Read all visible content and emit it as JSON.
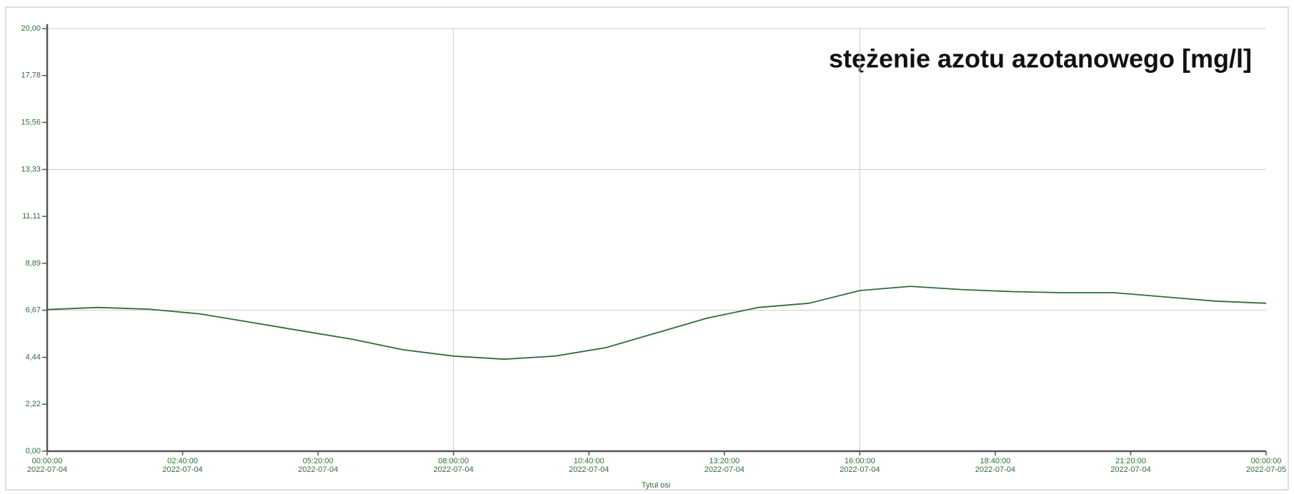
{
  "chart_data": {
    "type": "line",
    "title": "stężenie azotu azotanowego [mg/l]",
    "x_axis_label": "Tytuł osi",
    "x": [
      0,
      60,
      120,
      180,
      240,
      300,
      360,
      420,
      480,
      540,
      600,
      660,
      720,
      780,
      840,
      900,
      960,
      1020,
      1080,
      1140,
      1200,
      1260,
      1320,
      1380,
      1440
    ],
    "values": [
      6.7,
      6.8,
      6.72,
      6.5,
      6.1,
      5.7,
      5.3,
      4.8,
      4.5,
      4.35,
      4.5,
      4.9,
      5.6,
      6.3,
      6.8,
      7.0,
      7.6,
      7.8,
      7.65,
      7.55,
      7.5,
      7.5,
      7.3,
      7.1,
      7.0
    ],
    "color": "#2f6b3a",
    "xlim": [
      0,
      1440
    ],
    "xticks": [
      {
        "value": 0,
        "label": "00:00:00\n2022-07-04"
      },
      {
        "value": 160,
        "label": "02:40:00\n2022-07-04"
      },
      {
        "value": 320,
        "label": "05:20:00\n2022-07-04"
      },
      {
        "value": 480,
        "label": "08:00:00\n2022-07-04"
      },
      {
        "value": 640,
        "label": "10:40:00\n2022-07-04"
      },
      {
        "value": 800,
        "label": "13:20:00\n2022-07-04"
      },
      {
        "value": 960,
        "label": "16:00:00\n2022-07-04"
      },
      {
        "value": 1120,
        "label": "18:40:00\n2022-07-04"
      },
      {
        "value": 1280,
        "label": "21:20:00\n2022-07-04"
      },
      {
        "value": 1440,
        "label": "00:00:00\n2022-07-05"
      }
    ],
    "ylim": [
      0,
      20
    ],
    "yticks": [
      {
        "value": 0,
        "label": "0,00"
      },
      {
        "value": 2.22,
        "label": "2,22"
      },
      {
        "value": 4.44,
        "label": "4,44"
      },
      {
        "value": 6.67,
        "label": "6,67"
      },
      {
        "value": 8.89,
        "label": "8,89"
      },
      {
        "value": 11.11,
        "label": "11,11"
      },
      {
        "value": 13.33,
        "label": "13,33"
      },
      {
        "value": 15.56,
        "label": "15,56"
      },
      {
        "value": 17.78,
        "label": "17,78"
      },
      {
        "value": 20,
        "label": "20,00"
      }
    ],
    "grid": true
  }
}
